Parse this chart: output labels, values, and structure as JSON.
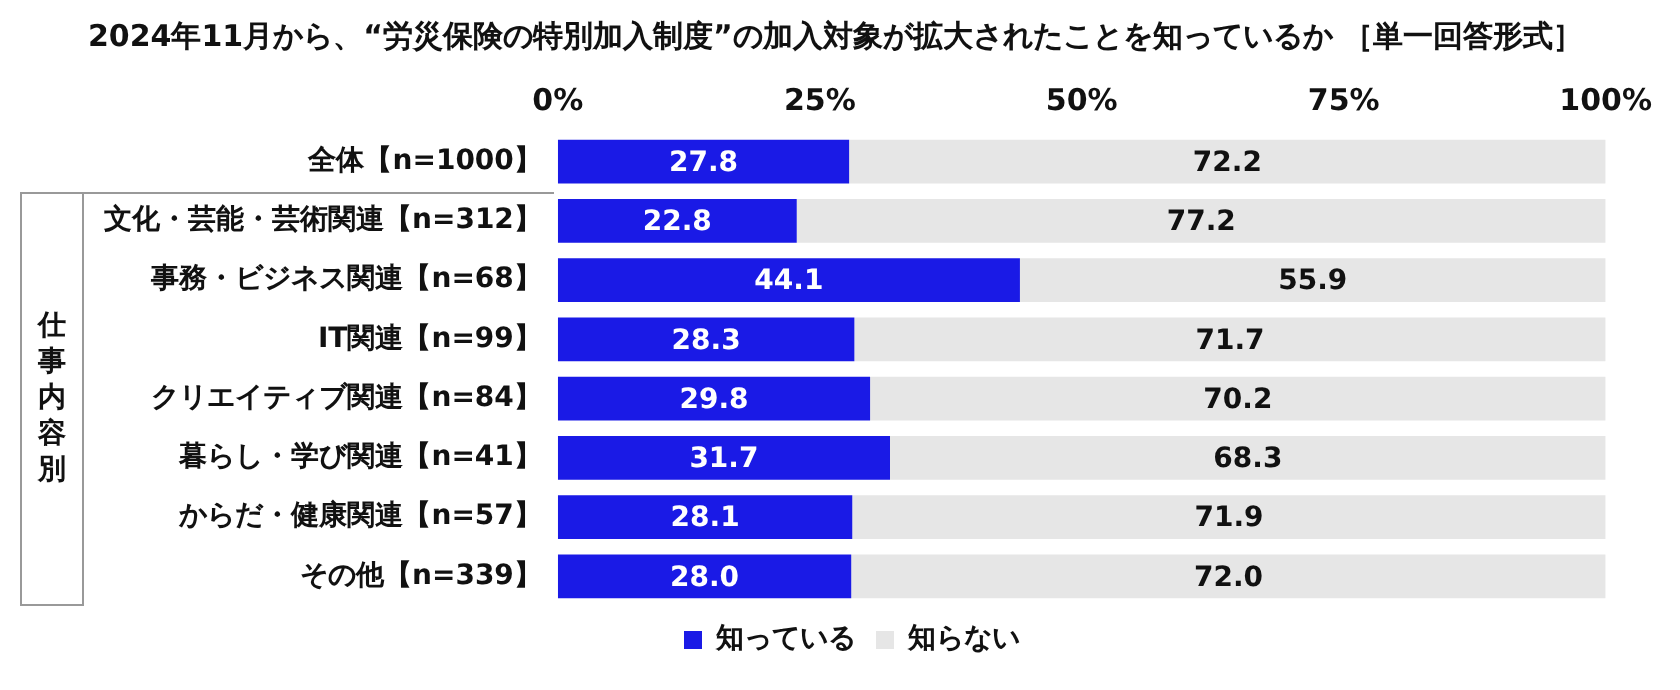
{
  "chart_data": {
    "type": "bar",
    "orientation": "horizontal",
    "stacked": true,
    "title": "2024年11月から、“労災保険の特別加入制度”の加入対象が拡大されたことを知っているか ［単一回答形式］",
    "categories": [
      "全体【n=1000】",
      "文化・芸能・芸術関連【n=312】",
      "事務・ビジネス関連【n=68】",
      "IT関連【n=99】",
      "クリエイティブ関連【n=84】",
      "暮らし・学び関連【n=41】",
      "からだ・健康関連【n=57】",
      "その他【n=339】"
    ],
    "series": [
      {
        "name": "知っている",
        "color": "#1a1ae6",
        "values": [
          27.8,
          22.8,
          44.1,
          28.3,
          29.8,
          31.7,
          28.1,
          28.0
        ],
        "value_labels": [
          "27.8",
          "22.8",
          "44.1",
          "28.3",
          "29.8",
          "31.7",
          "28.1",
          "28.0"
        ]
      },
      {
        "name": "知らない",
        "color": "#e6e6e6",
        "values": [
          72.2,
          77.2,
          55.9,
          71.7,
          70.2,
          68.3,
          71.9,
          72.0
        ],
        "value_labels": [
          "72.2",
          "77.2",
          "55.9",
          "71.7",
          "70.2",
          "68.3",
          "71.9",
          "72.0"
        ]
      }
    ],
    "xlim": [
      0,
      100
    ],
    "xticks": [
      {
        "value": 0,
        "label": "0%"
      },
      {
        "value": 25,
        "label": "25%"
      },
      {
        "value": 50,
        "label": "50%"
      },
      {
        "value": 75,
        "label": "75%"
      },
      {
        "value": 100,
        "label": "100%"
      }
    ],
    "annotations": [
      "仕事内容別"
    ],
    "legend": "bottom",
    "grid": false
  }
}
